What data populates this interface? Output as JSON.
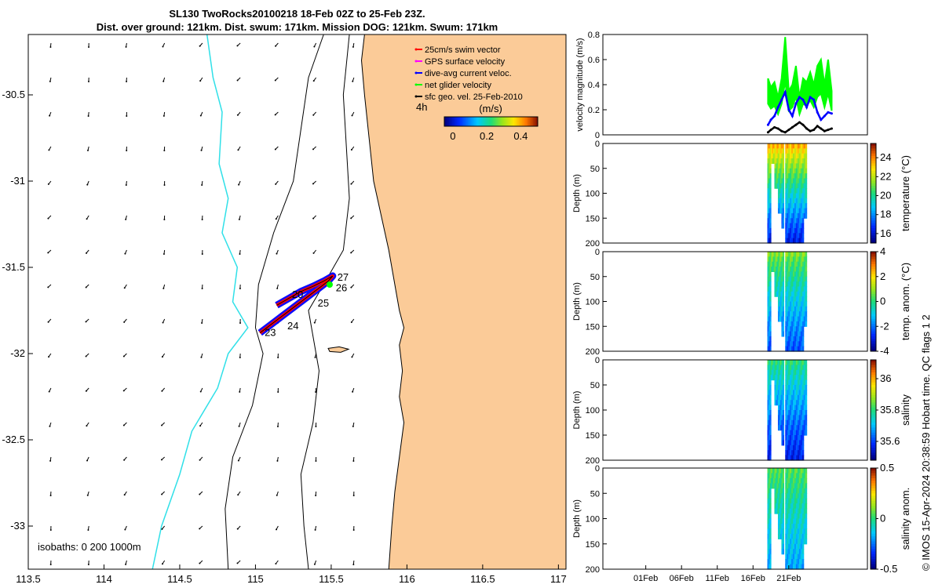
{
  "title": {
    "line1": "SL130 TwoRocks20100218 18-Feb 02Z to 25-Feb 23Z.",
    "line2": "Dist. over ground: 121km. Dist. swum: 171km. Mission DOG: 121km. Swum: 171km"
  },
  "copyright": "© IMOS 15-Apr-2024 20:38:59 Hobart time. QC flags 1  2",
  "colors": {
    "land": "#fbcb98",
    "isobath_shallow": "#000000",
    "isobath_deep": "#30e0e8",
    "swim_vector": "#ff0000",
    "gps_velocity": "#ff00ff",
    "dive_avg_current": "#0000ff",
    "net_glider_velocity": "#00ff00",
    "sfc_geo_velocity": "#000000"
  },
  "chart_data": [
    {
      "type": "map",
      "xlim": [
        113.5,
        117.05
      ],
      "ylim": [
        -33.25,
        -30.15
      ],
      "x_ticks": [
        "113.5",
        "114",
        "114.5",
        "115",
        "115.5",
        "116",
        "116.5",
        "117"
      ],
      "x_tick_values": [
        113.5,
        114,
        114.5,
        115,
        115.5,
        116,
        116.5,
        117
      ],
      "y_ticks": [
        "-30.5",
        "-31",
        "-31.5",
        "-32",
        "-32.5",
        "-33"
      ],
      "y_tick_values": [
        -30.5,
        -31,
        -31.5,
        -32,
        -32.5,
        -33
      ],
      "legend": [
        {
          "label": "25cm/s swim vector",
          "color": "#ff0000"
        },
        {
          "label": "GPS surface velocity",
          "color": "#ff00ff"
        },
        {
          "label": "dive-avg current veloc.",
          "color": "#0000ff"
        },
        {
          "label": "net glider velocity",
          "color": "#00ff00"
        },
        {
          "label": "sfc geo. vel. 25-Feb-2010",
          "color": "#000000"
        }
      ],
      "legend_placement": "top-right",
      "speed_colorbar": {
        "label": "(m/s)",
        "ticks": [
          "0",
          "0.2",
          "0.4"
        ],
        "tick_values": [
          0,
          0.2,
          0.4
        ],
        "range": [
          -0.05,
          0.5
        ]
      },
      "interval_label": "4h",
      "isobaths_label": "isobaths: 0   200  1000m",
      "track": [
        {
          "lon": 115.03,
          "lat": -31.88
        },
        {
          "lon": 115.06,
          "lat": -31.86
        },
        {
          "lon": 115.12,
          "lat": -31.82
        },
        {
          "lon": 115.18,
          "lat": -31.78
        },
        {
          "lon": 115.24,
          "lat": -31.74
        },
        {
          "lon": 115.3,
          "lat": -31.7
        },
        {
          "lon": 115.36,
          "lat": -31.66
        },
        {
          "lon": 115.42,
          "lat": -31.62
        },
        {
          "lon": 115.48,
          "lat": -31.58
        },
        {
          "lon": 115.51,
          "lat": -31.55
        },
        {
          "lon": 115.45,
          "lat": -31.58
        },
        {
          "lon": 115.38,
          "lat": -31.61
        },
        {
          "lon": 115.3,
          "lat": -31.64
        },
        {
          "lon": 115.22,
          "lat": -31.68
        },
        {
          "lon": 115.14,
          "lat": -31.72
        }
      ],
      "day_labels": [
        {
          "text": "27",
          "lon": 115.53,
          "lat": -31.56
        },
        {
          "text": "26",
          "lon": 115.52,
          "lat": -31.62
        },
        {
          "text": "25",
          "lon": 115.4,
          "lat": -31.71
        },
        {
          "text": "24",
          "lon": 115.2,
          "lat": -31.84
        },
        {
          "text": "23",
          "lon": 115.05,
          "lat": -31.88
        },
        {
          "text": "20",
          "lon": 115.23,
          "lat": -31.66
        }
      ]
    },
    {
      "type": "line",
      "ylabel": "velocity magnitude (m/s)",
      "ylim": [
        0,
        0.8
      ],
      "y_ticks": [
        "0",
        "0.2",
        "0.4",
        "0.6",
        "0.8"
      ],
      "y_tick_values": [
        0,
        0.2,
        0.4,
        0.6,
        0.8
      ],
      "xlim_days": [
        -5,
        32
      ],
      "series": [
        {
          "color": "#00ff00",
          "x": [
            18.1,
            18.5,
            19.0,
            19.5,
            20.0,
            20.5,
            21.0,
            21.5,
            22.0,
            22.5,
            23.0,
            23.5,
            24.0,
            24.5,
            25.0,
            25.5,
            26.0,
            26.5,
            27.0
          ],
          "y": [
            0.45,
            0.38,
            0.42,
            0.3,
            0.45,
            0.78,
            0.35,
            0.4,
            0.55,
            0.3,
            0.45,
            0.42,
            0.5,
            0.4,
            0.55,
            0.6,
            0.4,
            0.6,
            0.35
          ]
        },
        {
          "color": "#0000ff",
          "x": [
            18.1,
            18.5,
            19.0,
            19.5,
            20.0,
            20.5,
            21.0,
            21.5,
            22.0,
            22.5,
            23.0,
            23.5,
            24.0,
            24.5,
            25.0,
            25.5,
            26.0,
            26.5,
            27.0
          ],
          "y": [
            0.08,
            0.12,
            0.15,
            0.22,
            0.28,
            0.34,
            0.2,
            0.15,
            0.25,
            0.3,
            0.28,
            0.22,
            0.3,
            0.28,
            0.18,
            0.12,
            0.15,
            0.18,
            0.17
          ]
        },
        {
          "color": "#000000",
          "x": [
            18.1,
            18.5,
            19.0,
            19.5,
            20.0,
            20.5,
            21.0,
            21.5,
            22.0,
            22.5,
            23.0,
            23.5,
            24.0,
            24.5,
            25.0,
            25.5,
            26.0,
            26.5,
            27.0
          ],
          "y": [
            0.02,
            0.04,
            0.06,
            0.05,
            0.03,
            0.02,
            0.04,
            0.06,
            0.08,
            0.1,
            0.08,
            0.05,
            0.03,
            0.04,
            0.07,
            0.05,
            0.03,
            0.04,
            0.05
          ]
        }
      ]
    },
    {
      "type": "heatmap",
      "ylabel": "Depth (m)",
      "cbar_label": "temperature (°C)",
      "ylim": [
        200,
        0
      ],
      "y_ticks": [
        "0",
        "50",
        "100",
        "150",
        "200"
      ],
      "y_tick_values": [
        0,
        50,
        100,
        150,
        200
      ],
      "cbar_ticks": [
        "16",
        "18",
        "20",
        "22",
        "24"
      ],
      "cbar_tick_values": [
        16,
        18,
        20,
        22,
        24
      ],
      "cbar_range": [
        15,
        25.5
      ],
      "surface_value": 23.5,
      "deep_value": 16
    },
    {
      "type": "heatmap",
      "ylabel": "Depth (m)",
      "cbar_label": "temp. anom. (°C)",
      "ylim": [
        200,
        0
      ],
      "y_ticks": [
        "0",
        "50",
        "100",
        "150",
        "200"
      ],
      "y_tick_values": [
        0,
        50,
        100,
        150,
        200
      ],
      "cbar_ticks": [
        "4",
        "2",
        "0",
        "-2",
        "-4"
      ],
      "cbar_tick_values": [
        4,
        2,
        0,
        -2,
        -4
      ],
      "cbar_range": [
        -4,
        4
      ],
      "surface_value": 0.8,
      "deep_value": -2.5
    },
    {
      "type": "heatmap",
      "ylabel": "Depth (m)",
      "cbar_label": "salinity",
      "ylim": [
        200,
        0
      ],
      "y_ticks": [
        "0",
        "50",
        "100",
        "150",
        "200"
      ],
      "y_tick_values": [
        0,
        50,
        100,
        150,
        200
      ],
      "cbar_ticks": [
        "36",
        "35.8",
        "35.6"
      ],
      "cbar_tick_values": [
        36,
        35.8,
        35.6
      ],
      "cbar_range": [
        35.48,
        36.12
      ],
      "surface_value": 35.8,
      "deep_value": 35.55
    },
    {
      "type": "heatmap",
      "ylabel": "Depth (m)",
      "cbar_label": "salinity anom.",
      "ylim": [
        200,
        0
      ],
      "y_ticks": [
        "0",
        "50",
        "100",
        "150",
        "200"
      ],
      "y_tick_values": [
        0,
        50,
        100,
        150,
        200
      ],
      "cbar_ticks": [
        "0.5",
        "0",
        "-0.5"
      ],
      "cbar_tick_values": [
        0.5,
        0,
        -0.5
      ],
      "cbar_range": [
        -0.5,
        0.5
      ],
      "surface_value": 0.05,
      "deep_value": -0.2,
      "x_ticks": [
        "01Feb",
        "06Feb",
        "11Feb",
        "16Feb",
        "21Feb"
      ],
      "x_tick_days": [
        1,
        6,
        11,
        16,
        21
      ]
    }
  ]
}
